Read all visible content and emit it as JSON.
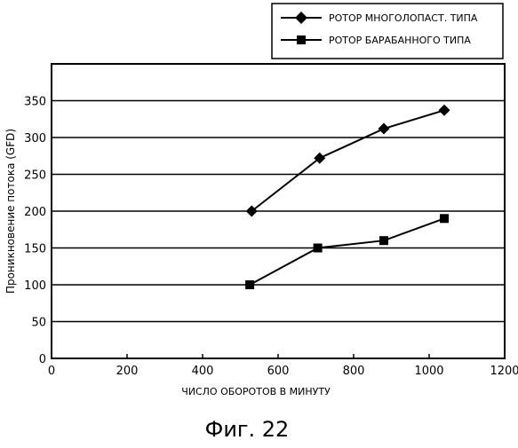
{
  "figure": {
    "caption": "Фиг. 22"
  },
  "chart_data": {
    "type": "line",
    "xlabel": "ЧИСЛО ОБОРОТОВ В МИНУТУ",
    "ylabel": "Проникновение потока (GFD)",
    "xlim": [
      0,
      1200
    ],
    "ylim": [
      0,
      400
    ],
    "x_ticks": [
      0,
      200,
      400,
      600,
      800,
      1000,
      1200
    ],
    "y_ticks": [
      0,
      50,
      100,
      150,
      200,
      250,
      300,
      350
    ],
    "grid": "horizontal",
    "legend_position": "top-right, outside plot",
    "series": [
      {
        "name": "РОТОР МНОГОЛОПАСТ. ТИПА",
        "marker": "diamond",
        "points": [
          [
            530,
            200
          ],
          [
            710,
            272
          ],
          [
            880,
            312
          ],
          [
            1040,
            337
          ]
        ]
      },
      {
        "name": "РОТОР БАРАБАННОГО ТИПА",
        "marker": "square",
        "points": [
          [
            525,
            100
          ],
          [
            705,
            150
          ],
          [
            880,
            160
          ],
          [
            1040,
            190
          ]
        ]
      }
    ]
  }
}
